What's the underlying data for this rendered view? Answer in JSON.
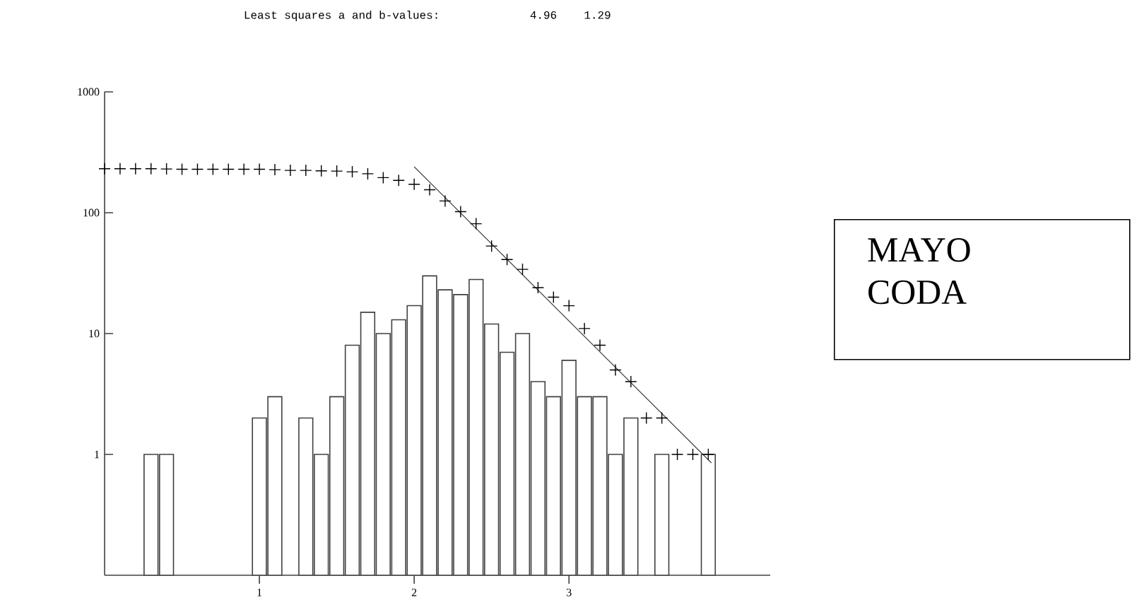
{
  "chart_data": {
    "type": "bar",
    "title": "Least squares a and b-values:          4.96    1.29",
    "log": "y",
    "grid": false,
    "xlim": [
      0,
      4.3
    ],
    "ylim": [
      0.1,
      1000
    ],
    "xticks": [
      1,
      2,
      3
    ],
    "yticks": [
      1,
      10,
      100,
      1000
    ],
    "annotations": [
      "MAYO CODA"
    ],
    "series": [
      {
        "color": "#ffffff",
        "x": [
          0.3,
          0.4,
          1.0,
          1.1,
          1.3,
          1.4,
          1.5,
          1.6,
          1.7,
          1.8,
          1.9,
          2.0,
          2.1,
          2.2,
          2.3,
          2.4,
          2.5,
          2.6,
          2.7,
          2.8,
          2.9,
          3.0,
          3.1,
          3.2,
          3.3,
          3.4,
          3.6,
          3.9
        ],
        "values": [
          1,
          1,
          2,
          3,
          2,
          1,
          3,
          8,
          15,
          10,
          13,
          17,
          30,
          23,
          21,
          28,
          12,
          7,
          10,
          4,
          3,
          6,
          3,
          3,
          1,
          2,
          1,
          1
        ]
      },
      {
        "type": "scatter",
        "marker": "cross",
        "color": "#000000",
        "x": [
          0.0,
          0.1,
          0.2,
          0.3,
          0.4,
          0.5,
          0.6,
          0.7,
          0.8,
          0.9,
          1.0,
          1.1,
          1.2,
          1.3,
          1.4,
          1.5,
          1.6,
          1.7,
          1.8,
          1.9,
          2.0,
          2.1,
          2.2,
          2.3,
          2.4,
          2.5,
          2.6,
          2.7,
          2.8,
          2.9,
          3.0,
          3.1,
          3.2,
          3.3,
          3.4,
          3.5,
          3.6,
          3.7,
          3.8,
          3.9
        ],
        "values": [
          231,
          231,
          231,
          231,
          230,
          229,
          229,
          229,
          229,
          229,
          229,
          227,
          224,
          224,
          222,
          221,
          218,
          210,
          195,
          185,
          172,
          155,
          125,
          102,
          81,
          53,
          41,
          34,
          24,
          20,
          17,
          11,
          8,
          5,
          4,
          2,
          2,
          1,
          1,
          1
        ]
      },
      {
        "type": "line",
        "color": "#404040",
        "line_style": "solid",
        "x": [
          2.0,
          3.92
        ],
        "values": [
          240,
          0.85
        ]
      }
    ]
  }
}
